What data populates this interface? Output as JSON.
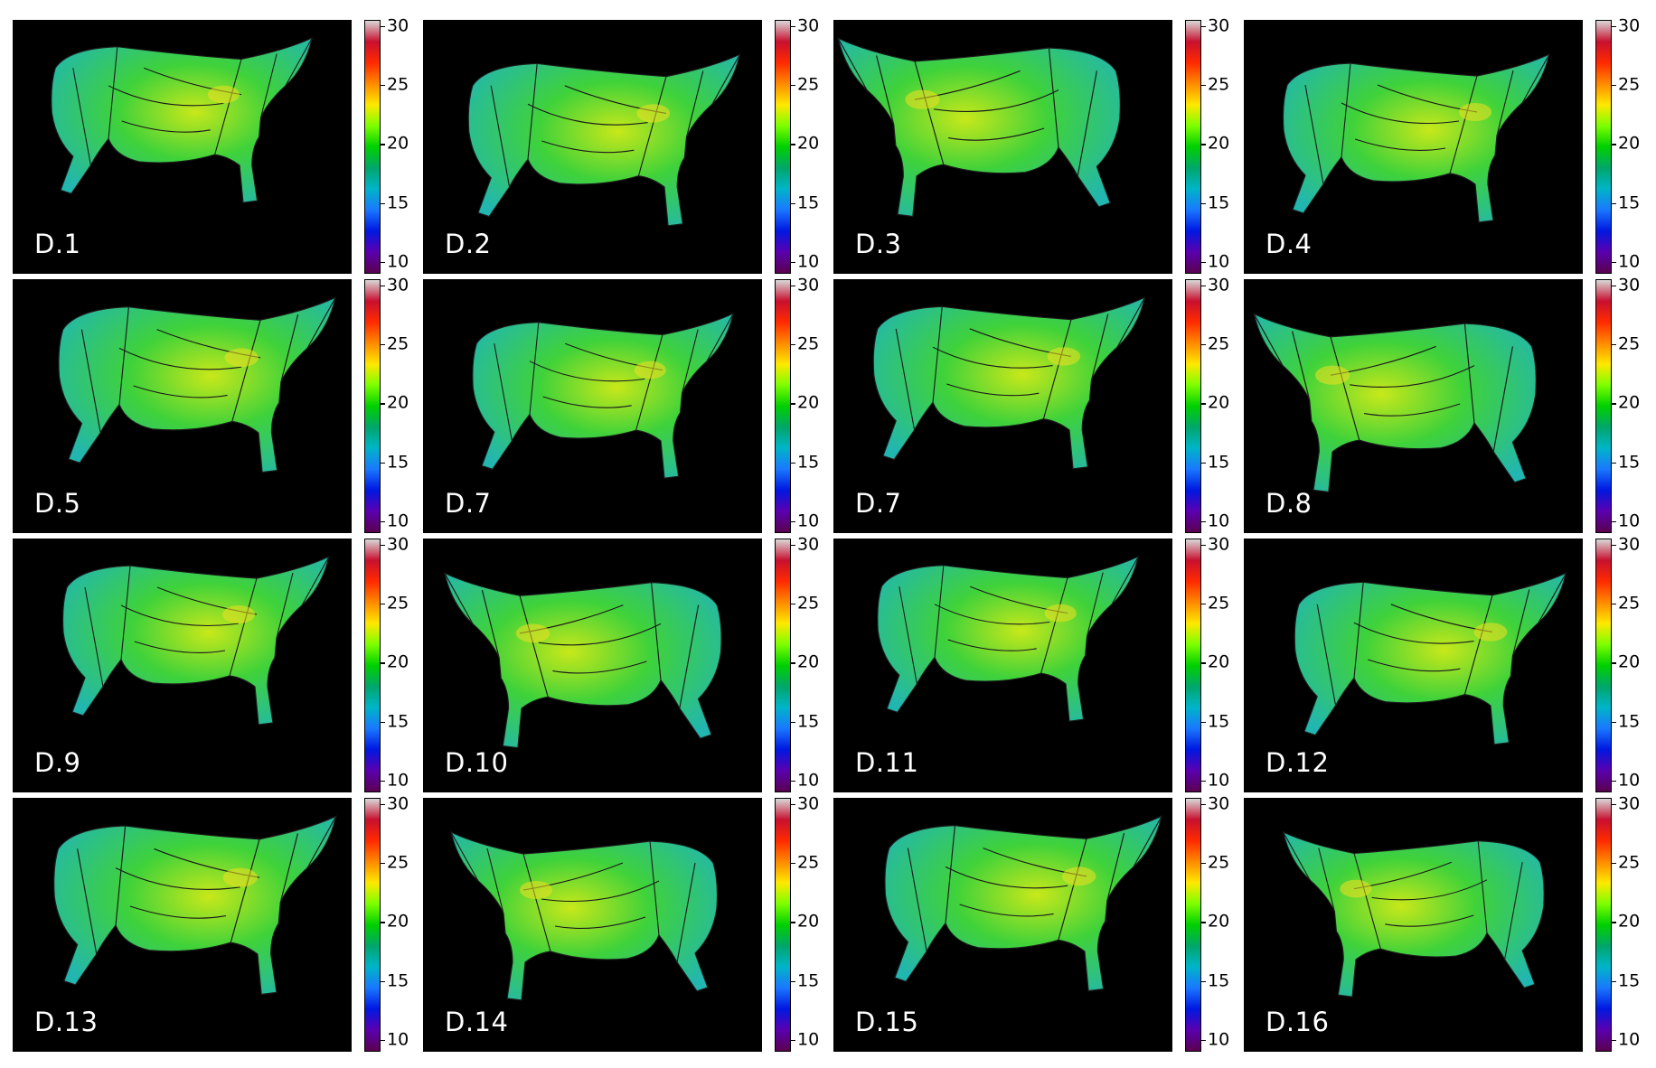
{
  "colorbar": {
    "min": 9,
    "max": 30.5,
    "ticks": [
      {
        "label": "30",
        "value": 30
      },
      {
        "label": "25",
        "value": 25
      },
      {
        "label": "20",
        "value": 20
      },
      {
        "label": "15",
        "value": 15
      },
      {
        "label": "10",
        "value": 10
      }
    ],
    "stops": [
      "#d8d8d8",
      "#c8102e",
      "#ff2a00",
      "#ff8a00",
      "#ffe800",
      "#7dff00",
      "#00d000",
      "#00a66a",
      "#00b4c8",
      "#1a78ff",
      "#0018e0",
      "#5a00b0",
      "#5a0050"
    ]
  },
  "panels": [
    {
      "label": "D.1",
      "facing": "right"
    },
    {
      "label": "D.2",
      "facing": "right"
    },
    {
      "label": "D.3",
      "facing": "left"
    },
    {
      "label": "D.4",
      "facing": "right"
    },
    {
      "label": "D.5",
      "facing": "right"
    },
    {
      "label": "D.7",
      "facing": "right"
    },
    {
      "label": "D.7",
      "facing": "right"
    },
    {
      "label": "D.8",
      "facing": "left"
    },
    {
      "label": "D.9",
      "facing": "right"
    },
    {
      "label": "D.10",
      "facing": "left"
    },
    {
      "label": "D.11",
      "facing": "right"
    },
    {
      "label": "D.12",
      "facing": "right"
    },
    {
      "label": "D.13",
      "facing": "right"
    },
    {
      "label": "D.14",
      "facing": "left"
    },
    {
      "label": "D.15",
      "facing": "right"
    },
    {
      "label": "D.16",
      "facing": "left"
    }
  ],
  "colors": {
    "background": "#000000",
    "body_green": "#3fd23a",
    "body_cyan": "#22b6b0",
    "body_yellow": "#c8e81a",
    "segment_lines": "#1a1a1a"
  }
}
